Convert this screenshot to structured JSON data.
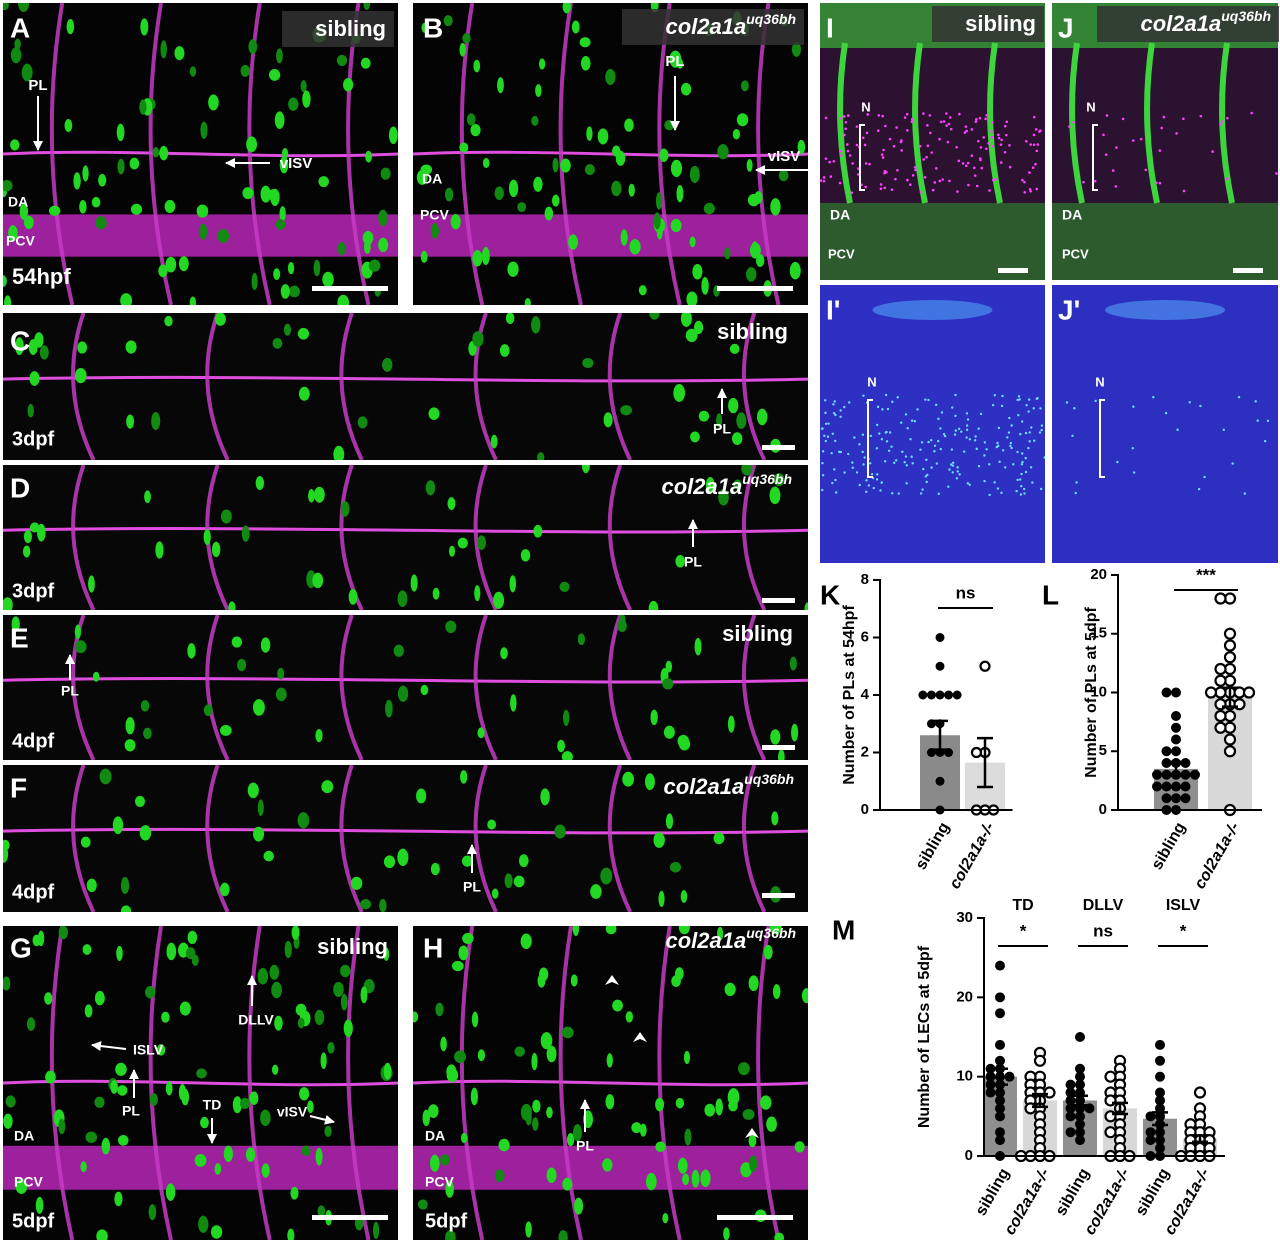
{
  "panels": [
    {
      "letter": "A",
      "tag": "sibling",
      "notes": [
        "PL",
        "vISV",
        "DA",
        "PCV",
        "54hpf"
      ]
    },
    {
      "letter": "B",
      "tag": "col2a1a",
      "tag_sup": "uq36bh",
      "notes": [
        "PL",
        "vISV",
        "DA",
        "PCV"
      ]
    },
    {
      "letter": "C",
      "tag": "sibling",
      "notes": [
        "PL",
        "3dpf"
      ]
    },
    {
      "letter": "D",
      "tag": "col2a1a",
      "tag_sup": "uq36bh",
      "notes": [
        "PL",
        "3dpf"
      ]
    },
    {
      "letter": "E",
      "tag": "sibling",
      "notes": [
        "PL",
        "4dpf"
      ]
    },
    {
      "letter": "F",
      "tag": "col2a1a",
      "tag_sup": "uq36bh",
      "notes": [
        "PL",
        "4dpf"
      ]
    },
    {
      "letter": "G",
      "tag": "sibling",
      "notes": [
        "DLLV",
        "ISLV",
        "PL",
        "TD",
        "vISV",
        "DA",
        "PCV",
        "5dpf"
      ]
    },
    {
      "letter": "H",
      "tag": "col2a1a",
      "tag_sup": "uq36bh",
      "notes": [
        "PL",
        "DA",
        "PCV",
        "5dpf"
      ]
    },
    {
      "letter": "I",
      "tag": "sibling",
      "notes": [
        "N",
        "DA",
        "PCV"
      ]
    },
    {
      "letter": "J",
      "tag": "col2a1a",
      "tag_sup": "uq36bh",
      "notes": [
        "N",
        "DA",
        "PCV"
      ]
    },
    {
      "letter": "I'",
      "notes": [
        "N"
      ]
    },
    {
      "letter": "J'",
      "notes": [
        "N"
      ]
    }
  ],
  "chart_data": [
    {
      "type": "bar",
      "letter": "K",
      "y_label": "Number of PLs at 54hpf",
      "categories": [
        "sibling",
        "col2a1a-/-"
      ],
      "values": [
        2.6,
        1.65
      ],
      "errors": [
        0.5,
        0.85
      ],
      "colors": [
        "#8a8a8a",
        "#dcdcdc"
      ],
      "point_style": [
        "filled",
        "open"
      ],
      "points": [
        [
          6,
          5,
          4,
          4,
          4,
          4,
          4,
          3,
          3,
          2,
          2,
          2,
          1,
          0
        ],
        [
          5,
          2,
          2,
          0,
          0,
          0
        ]
      ],
      "groups": [
        {
          "sig": "ns"
        }
      ],
      "ylim": [
        0,
        8
      ],
      "yticks": [
        0,
        2,
        4,
        6,
        8
      ]
    },
    {
      "type": "bar",
      "letter": "L",
      "y_label": "Number of PLs at 5dpf",
      "categories": [
        "sibling",
        "col2a1a-/-"
      ],
      "values": [
        3.5,
        9.6
      ],
      "errors": [
        0.6,
        0.8
      ],
      "colors": [
        "#8f8f8f",
        "#d8d8d8"
      ],
      "point_style": [
        "filled",
        "open"
      ],
      "points": [
        [
          10,
          10,
          8,
          7,
          6,
          5,
          5,
          4,
          4,
          4,
          3,
          3,
          3,
          3,
          3,
          2,
          2,
          2,
          2,
          1,
          1,
          1,
          0,
          0
        ],
        [
          18,
          18,
          15,
          14,
          13,
          12,
          12,
          11,
          11,
          10,
          10,
          10,
          10,
          10,
          9,
          9,
          9,
          8,
          8,
          7,
          7,
          6,
          5,
          0
        ]
      ],
      "groups": [
        {
          "sig": "***"
        }
      ],
      "ylim": [
        0,
        20
      ],
      "yticks": [
        0,
        5,
        10,
        15,
        20
      ]
    },
    {
      "type": "bar",
      "letter": "M",
      "y_label": "Number of LECs at 5dpf",
      "categories": [
        "sibling",
        "col2a1a-/-",
        "sibling",
        "col2a1a-/-",
        "sibling",
        "col2a1a-/-"
      ],
      "values": [
        10,
        7,
        7,
        6,
        4.7,
        2.2
      ],
      "errors": [
        1,
        0.8,
        0.6,
        0.7,
        0.8,
        0.4
      ],
      "colors": [
        "#8f8f8f",
        "#d8d8d8",
        "#8f8f8f",
        "#d8d8d8",
        "#8f8f8f",
        "#d8d8d8"
      ],
      "point_style": [
        "filled",
        "open",
        "filled",
        "open",
        "filled",
        "open"
      ],
      "points": [
        [
          24,
          20,
          18,
          14,
          12,
          11,
          11,
          10,
          10,
          10,
          9,
          9,
          8,
          8,
          7,
          6,
          5,
          3,
          2,
          0
        ],
        [
          13,
          12,
          10,
          10,
          9,
          9,
          8,
          8,
          8,
          7,
          7,
          6,
          6,
          5,
          4,
          3,
          2,
          1,
          0,
          0,
          0,
          0
        ],
        [
          15,
          11,
          10,
          9,
          9,
          8,
          8,
          7,
          7,
          6,
          6,
          6,
          5,
          5,
          4,
          3,
          3,
          2
        ],
        [
          12,
          11,
          10,
          10,
          9,
          8,
          8,
          7,
          7,
          6,
          5,
          5,
          4,
          3,
          3,
          2,
          1,
          0,
          0,
          0
        ],
        [
          14,
          12,
          10,
          8,
          7,
          6,
          5,
          5,
          4,
          3,
          3,
          2,
          2,
          1,
          0,
          0
        ],
        [
          8,
          6,
          5,
          4,
          4,
          3,
          3,
          3,
          2,
          2,
          2,
          1,
          1,
          1,
          0,
          0,
          0,
          0
        ]
      ],
      "groups": [
        {
          "name": "TD",
          "sig": "*"
        },
        {
          "name": "DLLV",
          "sig": "ns"
        },
        {
          "name": "ISLV",
          "sig": "*"
        }
      ],
      "ylim": [
        0,
        30
      ],
      "yticks": [
        0,
        10,
        20,
        30
      ]
    }
  ]
}
